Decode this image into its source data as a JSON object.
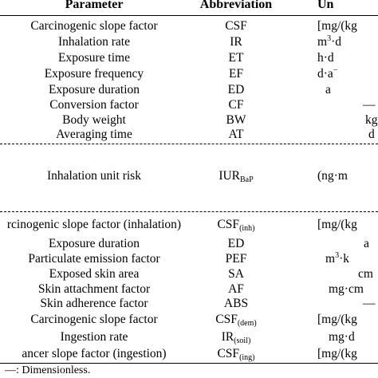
{
  "header": {
    "parameter": "Parameter",
    "abbreviation": "Abbreviation",
    "unit": "Un"
  },
  "group1": [
    {
      "parameter": "Carcinogenic slope factor",
      "abbr": "CSF",
      "unit": "[mg/(kg"
    },
    {
      "parameter": "Inhalation rate",
      "abbr": "IR",
      "unit_base": "m",
      "unit_sup": "3",
      "unit_tail": "·d"
    },
    {
      "parameter": "Exposure time",
      "abbr": "ET",
      "unit": "h·d"
    },
    {
      "parameter": "Exposure frequency",
      "abbr": "EF",
      "unit_base": "d·a",
      "unit_sup": "−"
    },
    {
      "parameter": "Exposure duration",
      "abbr": "ED",
      "unit": "a"
    },
    {
      "parameter": "Conversion factor",
      "abbr": "CF",
      "unit": "—"
    },
    {
      "parameter": "Body weight",
      "abbr": "BW",
      "unit": "kg"
    },
    {
      "parameter": "Averaging time",
      "abbr": "AT",
      "unit": "d"
    }
  ],
  "group2": [
    {
      "parameter": "Inhalation unit risk",
      "abbr_base": "IUR",
      "abbr_sub": "BaP",
      "unit": "(ng·m"
    }
  ],
  "group3": [
    {
      "parameter": "rcinogenic slope factor (inhalation)",
      "abbr_base": "CSF",
      "abbr_sub": "(inh)",
      "unit": "[mg/(kg"
    },
    {
      "parameter": "Exposure duration",
      "abbr": "ED",
      "unit": "a"
    },
    {
      "parameter": "Particulate emission factor",
      "abbr": "PEF",
      "unit_base": "m",
      "unit_sup": "3",
      "unit_tail": "·k"
    },
    {
      "parameter": "Exposed skin area",
      "abbr": "SA",
      "unit": "cm"
    },
    {
      "parameter": "Skin attachment factor",
      "abbr": "AF",
      "unit": "mg·cm"
    },
    {
      "parameter": "Skin adherence factor",
      "abbr": "ABS",
      "unit": "—"
    },
    {
      "parameter": "Carcinogenic slope factor",
      "abbr_base": "CSF",
      "abbr_sub": "(dem)",
      "unit": "[mg/(kg"
    },
    {
      "parameter": "Ingestion rate",
      "abbr_base": "IR",
      "abbr_sub": "(soil)",
      "unit": "mg·d"
    },
    {
      "parameter": "ancer slope factor (ingestion)",
      "abbr_base": "CSF",
      "abbr_sub": "(ing)",
      "unit": "[mg/(kg"
    }
  ],
  "footnote": "—: Dimensionless."
}
